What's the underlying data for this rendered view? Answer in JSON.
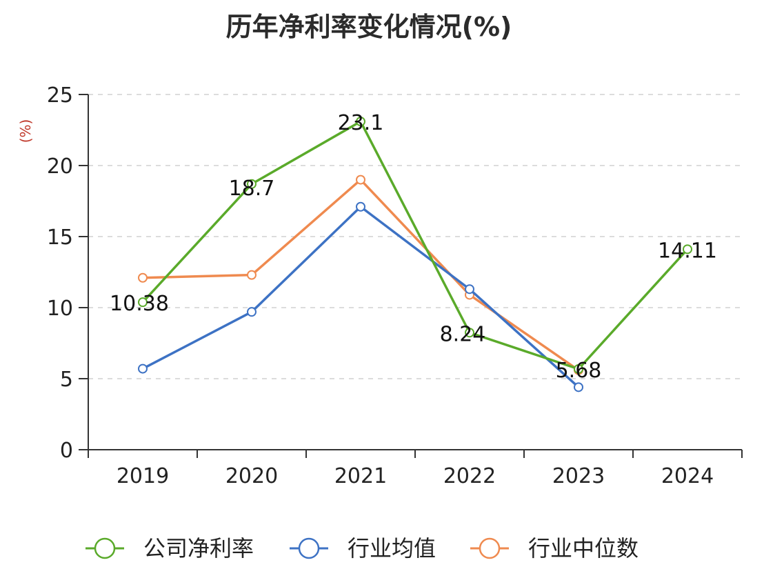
{
  "chart_data": {
    "type": "line",
    "title": "历年净利率变化情况(%)",
    "ylabel": "(%)",
    "xlabel": "",
    "categories": [
      "2019",
      "2020",
      "2021",
      "2022",
      "2023",
      "2024"
    ],
    "ylim": [
      0,
      25
    ],
    "yticks": [
      0,
      5,
      10,
      15,
      20,
      25
    ],
    "grid": true,
    "legend_position": "bottom",
    "series": [
      {
        "name": "公司净利率",
        "color": "#5aaa2a",
        "values": [
          10.38,
          18.7,
          23.1,
          8.24,
          5.68,
          14.11
        ],
        "labels": [
          "10.38",
          "18.7",
          "23.1",
          "8.24",
          "5.68",
          "14.11"
        ]
      },
      {
        "name": "行业均值",
        "color": "#3d72c4",
        "values": [
          5.7,
          9.7,
          17.1,
          11.3,
          4.4,
          null
        ]
      },
      {
        "name": "行业中位数",
        "color": "#ef8a4f",
        "values": [
          12.1,
          12.3,
          19.0,
          10.9,
          5.6,
          null
        ]
      }
    ]
  }
}
